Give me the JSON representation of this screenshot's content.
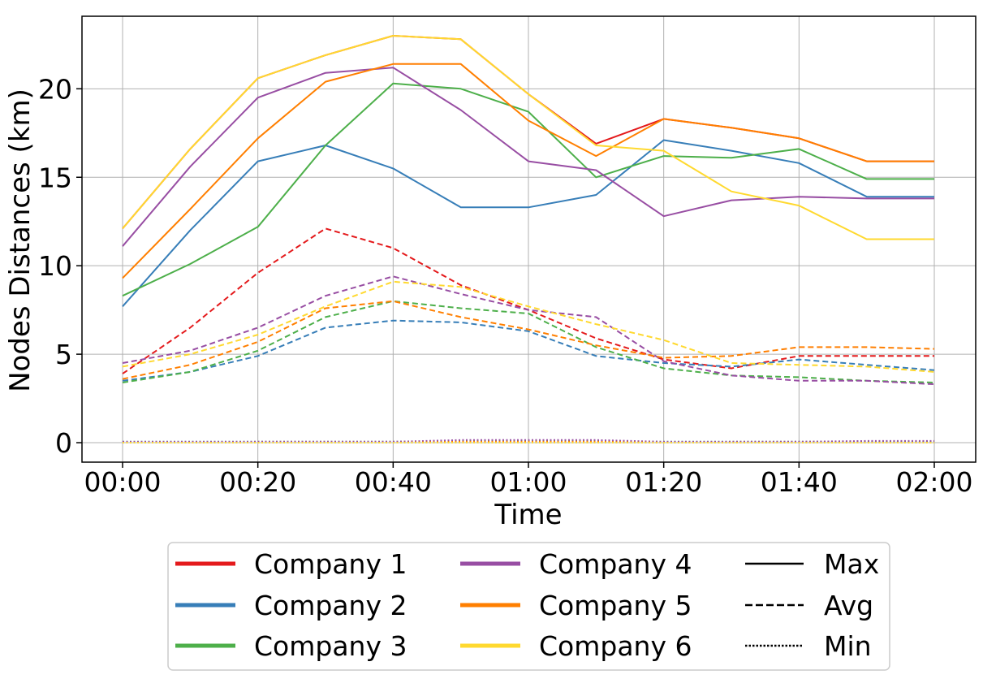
{
  "chart_data": {
    "type": "line",
    "title": "",
    "xlabel": "Time",
    "ylabel": "Nodes Distances (km)",
    "x": [
      "00:00",
      "00:10",
      "00:20",
      "00:30",
      "00:40",
      "00:50",
      "01:00",
      "01:10",
      "01:20",
      "01:30",
      "01:40",
      "01:50",
      "02:00"
    ],
    "x_ticks": [
      "00:00",
      "00:20",
      "00:40",
      "01:00",
      "01:20",
      "01:40",
      "02:00"
    ],
    "y_ticks": [
      "0",
      "5",
      "10",
      "15",
      "20"
    ],
    "ylim": [
      -1.1,
      24.1
    ],
    "grid": true,
    "legend_position": "bottom",
    "legend": {
      "companies": [
        {
          "name": "Company 1",
          "color": "#e41a1c"
        },
        {
          "name": "Company 2",
          "color": "#377eb8"
        },
        {
          "name": "Company 3",
          "color": "#4daf4a"
        },
        {
          "name": "Company 4",
          "color": "#984ea3"
        },
        {
          "name": "Company 5",
          "color": "#ff7f00"
        },
        {
          "name": "Company 6",
          "color": "#ffd92f"
        }
      ],
      "styles": [
        {
          "name": "Max",
          "dash": "solid"
        },
        {
          "name": "Avg",
          "dash": "dashed"
        },
        {
          "name": "Min",
          "dash": "dotted"
        }
      ]
    },
    "series": [
      {
        "company": "Company 1",
        "stat": "Max",
        "color": "#e41a1c",
        "values": [
          12.1,
          16.6,
          20.6,
          21.9,
          23.0,
          22.8,
          19.7,
          16.9,
          18.3,
          17.8,
          17.2,
          15.9,
          15.9
        ]
      },
      {
        "company": "Company 2",
        "stat": "Max",
        "color": "#377eb8",
        "values": [
          7.7,
          12.0,
          15.9,
          16.8,
          15.5,
          13.3,
          13.3,
          14.0,
          17.1,
          16.5,
          15.8,
          13.9,
          13.9
        ]
      },
      {
        "company": "Company 3",
        "stat": "Max",
        "color": "#4daf4a",
        "values": [
          8.3,
          10.1,
          12.2,
          16.8,
          20.3,
          20.0,
          18.7,
          15.0,
          16.2,
          16.1,
          16.6,
          14.9,
          14.9
        ]
      },
      {
        "company": "Company 4",
        "stat": "Max",
        "color": "#984ea3",
        "values": [
          11.1,
          15.6,
          19.5,
          20.9,
          21.2,
          18.8,
          15.9,
          15.4,
          12.8,
          13.7,
          13.9,
          13.8,
          13.8
        ]
      },
      {
        "company": "Company 5",
        "stat": "Max",
        "color": "#ff7f00",
        "values": [
          9.3,
          13.2,
          17.2,
          20.4,
          21.4,
          21.4,
          18.2,
          16.2,
          18.3,
          17.8,
          17.2,
          15.9,
          15.9
        ]
      },
      {
        "company": "Company 6",
        "stat": "Max",
        "color": "#ffd92f",
        "values": [
          12.1,
          16.6,
          20.6,
          21.9,
          23.0,
          22.8,
          19.7,
          16.8,
          16.5,
          14.2,
          13.4,
          11.5,
          11.5
        ]
      },
      {
        "company": "Company 1",
        "stat": "Avg",
        "color": "#e41a1c",
        "values": [
          3.9,
          6.5,
          9.6,
          12.1,
          11.0,
          8.9,
          7.5,
          5.9,
          4.7,
          4.2,
          4.9,
          4.9,
          4.9
        ]
      },
      {
        "company": "Company 2",
        "stat": "Avg",
        "color": "#377eb8",
        "values": [
          3.5,
          4.0,
          4.9,
          6.5,
          6.9,
          6.8,
          6.3,
          4.9,
          4.5,
          4.3,
          4.7,
          4.4,
          4.1
        ]
      },
      {
        "company": "Company 3",
        "stat": "Avg",
        "color": "#4daf4a",
        "values": [
          3.4,
          4.0,
          5.2,
          7.1,
          8.0,
          7.6,
          7.3,
          5.4,
          4.2,
          3.8,
          3.7,
          3.5,
          3.4
        ]
      },
      {
        "company": "Company 4",
        "stat": "Avg",
        "color": "#984ea3",
        "values": [
          4.5,
          5.2,
          6.5,
          8.3,
          9.4,
          8.4,
          7.5,
          7.1,
          4.6,
          3.8,
          3.5,
          3.5,
          3.3
        ]
      },
      {
        "company": "Company 5",
        "stat": "Avg",
        "color": "#ff7f00",
        "values": [
          3.6,
          4.4,
          5.7,
          7.6,
          8.0,
          7.1,
          6.4,
          5.5,
          4.8,
          4.9,
          5.4,
          5.4,
          5.3
        ]
      },
      {
        "company": "Company 6",
        "stat": "Avg",
        "color": "#ffd92f",
        "values": [
          4.3,
          5.0,
          6.1,
          7.7,
          9.1,
          8.8,
          7.7,
          6.7,
          5.8,
          4.5,
          4.4,
          4.3,
          4.0
        ]
      },
      {
        "company": "Company 1",
        "stat": "Min",
        "color": "#e41a1c",
        "values": [
          0.0,
          0.0,
          0.05,
          0.05,
          0.05,
          0.1,
          0.1,
          0.1,
          0.0,
          0.05,
          0.05,
          0.05,
          0.05
        ]
      },
      {
        "company": "Company 2",
        "stat": "Min",
        "color": "#377eb8",
        "values": [
          0.05,
          0.05,
          0.05,
          0.05,
          0.05,
          0.1,
          0.1,
          0.1,
          0.05,
          0.05,
          0.05,
          0.05,
          0.05
        ]
      },
      {
        "company": "Company 3",
        "stat": "Min",
        "color": "#4daf4a",
        "values": [
          0.05,
          0.05,
          0.05,
          0.05,
          0.05,
          0.1,
          0.1,
          0.1,
          0.05,
          0.05,
          0.05,
          0.05,
          0.05
        ]
      },
      {
        "company": "Company 4",
        "stat": "Min",
        "color": "#984ea3",
        "values": [
          0.05,
          0.05,
          0.05,
          0.05,
          0.05,
          0.15,
          0.15,
          0.15,
          0.05,
          0.05,
          0.05,
          0.1,
          0.1
        ]
      },
      {
        "company": "Company 5",
        "stat": "Min",
        "color": "#ff7f00",
        "values": [
          0.0,
          0.0,
          0.0,
          0.0,
          0.0,
          0.05,
          0.05,
          0.05,
          0.0,
          0.0,
          0.0,
          0.0,
          0.0
        ]
      },
      {
        "company": "Company 6",
        "stat": "Min",
        "color": "#ffd92f",
        "values": [
          0.0,
          0.0,
          0.0,
          0.0,
          0.0,
          0.0,
          0.0,
          0.0,
          0.0,
          0.0,
          0.0,
          0.0,
          0.0
        ]
      }
    ]
  }
}
